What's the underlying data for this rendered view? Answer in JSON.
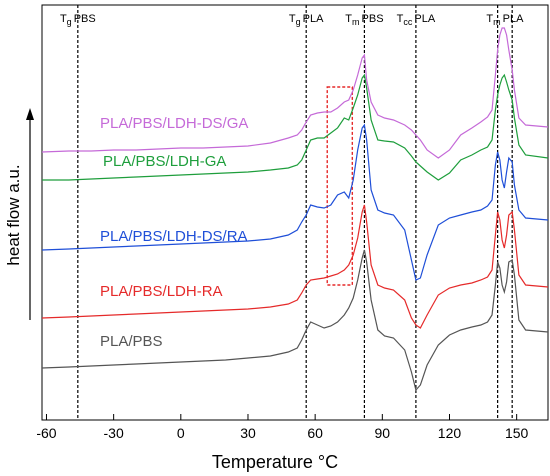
{
  "chart_data": {
    "type": "line",
    "xlabel": "Temperature °C",
    "ylabel": "heat flow a.u.",
    "xlim": [
      -62,
      164
    ],
    "ylim": [
      0,
      415
    ],
    "xticks": [
      -60,
      -30,
      0,
      30,
      60,
      90,
      120,
      150
    ],
    "x": [
      -62,
      -50,
      -40,
      -30,
      -20,
      -10,
      0,
      10,
      20,
      30,
      40,
      48,
      52,
      54,
      56,
      58,
      61,
      64,
      67,
      70,
      73,
      75,
      77,
      79,
      81,
      82,
      83,
      85,
      88,
      91,
      95,
      100,
      103,
      105,
      107,
      110,
      115,
      120,
      125,
      130,
      134,
      137,
      139,
      140.5,
      141.5,
      142.5,
      143.5,
      144.5,
      145.5,
      146.5,
      148,
      149,
      151,
      154,
      164
    ],
    "series": [
      {
        "name": "PLA/PBS/LDH-DS/GA",
        "color": "#c56ad8",
        "values": [
          268,
          269,
          269,
          270,
          270,
          271,
          272,
          272,
          273,
          274,
          277,
          282,
          285,
          290,
          298,
          305,
          307,
          308,
          308,
          312,
          318,
          320,
          330,
          345,
          362,
          365,
          340,
          318,
          305,
          302,
          300,
          295,
          290,
          285,
          280,
          270,
          262,
          270,
          285,
          292,
          298,
          303,
          310,
          345,
          370,
          385,
          392,
          392,
          385,
          370,
          350,
          330,
          302,
          295,
          293
        ]
      },
      {
        "name": "PLA/PBS/LDH-GA",
        "color": "#1e9e3c",
        "values": [
          240,
          240,
          241,
          242,
          243,
          244,
          245,
          246,
          247,
          248,
          250,
          252,
          255,
          260,
          270,
          280,
          282,
          282,
          287,
          292,
          302,
          300,
          312,
          325,
          342,
          345,
          332,
          300,
          280,
          279,
          278,
          272,
          264,
          258,
          254,
          248,
          240,
          247,
          260,
          265,
          270,
          273,
          280,
          310,
          325,
          335,
          342,
          345,
          338,
          330,
          320,
          302,
          275,
          265,
          262
        ]
      },
      {
        "name": "PLA/PBS/LDH-DS/RA",
        "color": "#1f4fd8",
        "values": [
          170,
          171,
          172,
          173,
          174,
          175,
          176,
          177,
          178,
          179,
          181,
          185,
          190,
          198,
          205,
          215,
          213,
          212,
          215,
          225,
          228,
          222,
          240,
          270,
          292,
          295,
          280,
          230,
          210,
          207,
          205,
          190,
          160,
          140,
          142,
          165,
          195,
          202,
          205,
          208,
          210,
          214,
          220,
          255,
          268,
          260,
          240,
          232,
          248,
          262,
          258,
          235,
          210,
          202,
          200
        ]
      },
      {
        "name": "PLA/PBS/LDH-RA",
        "color": "#e52a2a",
        "values": [
          102,
          103,
          104,
          105,
          106,
          107,
          108,
          109,
          110,
          111,
          113,
          116,
          120,
          127,
          135,
          140,
          141,
          142,
          144,
          146,
          150,
          155,
          165,
          182,
          208,
          215,
          198,
          155,
          135,
          132,
          130,
          120,
          102,
          95,
          92,
          105,
          125,
          132,
          135,
          137,
          140,
          143,
          150,
          185,
          208,
          200,
          180,
          172,
          185,
          205,
          208,
          190,
          145,
          135,
          133
        ]
      },
      {
        "name": "PLA/PBS",
        "color": "#555555",
        "values": [
          52,
          53,
          54,
          55,
          56,
          57,
          58,
          59,
          60,
          62,
          64,
          68,
          72,
          80,
          90,
          98,
          95,
          92,
          94,
          98,
          105,
          112,
          122,
          140,
          162,
          170,
          158,
          120,
          90,
          84,
          82,
          70,
          48,
          30,
          35,
          55,
          75,
          85,
          90,
          93,
          95,
          98,
          105,
          135,
          158,
          152,
          135,
          128,
          138,
          158,
          160,
          145,
          100,
          90,
          88
        ]
      }
    ],
    "annotations": [
      {
        "symbol": "T",
        "subscript": "g",
        "text": "PBS",
        "x": [
          -46
        ]
      },
      {
        "symbol": "T",
        "subscript": "g",
        "text": "PLA",
        "x": [
          56
        ]
      },
      {
        "symbol": "T",
        "subscript": "m",
        "text": "PBS",
        "x": [
          82
        ]
      },
      {
        "symbol": "T",
        "subscript": "cc",
        "text": "PLA",
        "x": [
          105
        ]
      },
      {
        "symbol": "T",
        "subscript": "m",
        "text": "PLA",
        "x": [
          141.5,
          148
        ]
      }
    ],
    "highlight_box": {
      "xlim": [
        65.4,
        76.6
      ],
      "ylim": [
        135,
        333
      ],
      "color": "#e52a2a"
    }
  }
}
